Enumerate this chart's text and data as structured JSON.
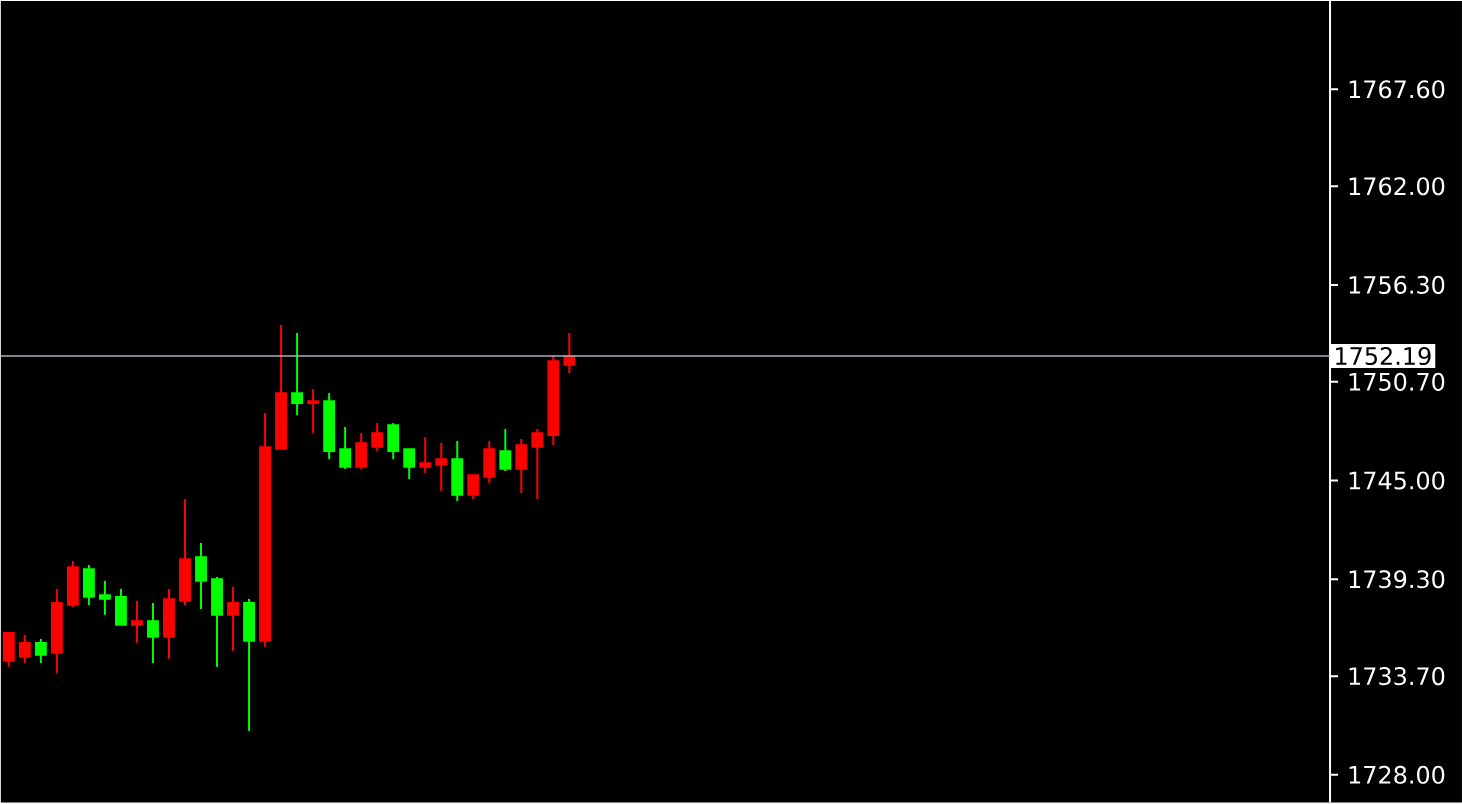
{
  "chart_data": {
    "type": "candlestick",
    "categories": [
      null,
      null,
      null,
      null,
      null,
      null,
      null,
      null,
      null,
      null,
      null,
      null,
      null,
      null,
      null,
      null,
      null,
      null,
      null,
      null,
      null,
      null,
      null,
      null,
      null,
      null,
      null,
      null,
      null,
      null,
      null,
      null,
      null,
      null,
      null,
      null,
      null,
      null,
      null,
      null,
      null,
      null,
      null,
      null,
      null,
      null,
      null,
      null,
      null,
      null,
      null,
      null,
      null,
      null,
      null,
      null,
      null,
      null,
      null,
      null,
      null,
      null,
      null,
      null,
      null,
      null,
      null,
      null,
      null,
      null,
      null,
      null,
      null,
      null,
      null,
      null,
      null,
      null,
      null,
      null,
      null,
      null,
      null
    ],
    "ylim": [
      1726.4,
      1772.7
    ],
    "yticks": [
      {
        "value": 1728.0,
        "label": "1728.00"
      },
      {
        "value": 1733.7,
        "label": "1733.70"
      },
      {
        "value": 1739.3,
        "label": "1739.30"
      },
      {
        "value": 1745.0,
        "label": "1745.00"
      },
      {
        "value": 1750.7,
        "label": "1750.70"
      },
      {
        "value": 1756.3,
        "label": "1756.30"
      },
      {
        "value": 1762.0,
        "label": "1762.00"
      },
      {
        "value": 1767.6,
        "label": "1767.60"
      }
    ],
    "tick_labels": "y",
    "ohlc": [
      [
        1734.58,
        1736.2,
        1734.24,
        1736.2
      ],
      [
        1734.81,
        1736.08,
        1734.46,
        1735.62
      ],
      [
        1735.62,
        1735.85,
        1734.46,
        1734.93
      ],
      [
        1735.04,
        1738.74,
        1733.89,
        1737.93
      ],
      [
        1737.81,
        1740.35,
        1737.7,
        1740.0
      ],
      [
        1739.89,
        1740.12,
        1737.81,
        1738.28
      ],
      [
        1738.39,
        1739.2,
        1737.24,
        1738.16
      ],
      [
        1738.28,
        1738.74,
        1736.66,
        1736.66
      ],
      [
        1736.66,
        1738.04,
        1735.62,
        1736.89
      ],
      [
        1736.89,
        1737.93,
        1734.46,
        1735.97
      ],
      [
        1735.97,
        1738.74,
        1734.7,
        1738.16
      ],
      [
        1738.04,
        1743.93,
        1737.81,
        1740.47
      ],
      [
        1740.58,
        1741.39,
        1737.58,
        1739.2
      ],
      [
        1739.31,
        1739.43,
        1734.24,
        1737.24
      ],
      [
        1737.24,
        1738.86,
        1735.16,
        1737.93
      ],
      [
        1737.93,
        1738.16,
        1730.54,
        1735.74
      ],
      [
        1735.74,
        1748.9,
        1735.39,
        1746.94
      ],
      [
        1746.82,
        1753.98,
        1746.82,
        1750.05
      ],
      [
        1750.05,
        1753.52,
        1748.78,
        1749.47
      ],
      [
        1749.47,
        1750.28,
        1747.74,
        1749.59
      ],
      [
        1749.59,
        1750.05,
        1746.24,
        1746.7
      ],
      [
        1746.82,
        1748.09,
        1745.67,
        1745.78
      ],
      [
        1745.78,
        1747.74,
        1745.67,
        1747.17
      ],
      [
        1746.94,
        1748.32,
        1746.7,
        1747.74
      ],
      [
        1748.2,
        1748.32,
        1746.24,
        1746.7
      ],
      [
        1746.82,
        1746.82,
        1745.09,
        1745.78
      ],
      [
        1745.78,
        1747.51,
        1745.43,
        1746.01
      ],
      [
        1745.9,
        1747.17,
        1744.39,
        1746.24
      ],
      [
        1746.24,
        1747.28,
        1743.81,
        1744.16
      ],
      [
        1744.16,
        1745.32,
        1743.93,
        1745.32
      ],
      [
        1745.2,
        1747.28,
        1744.86,
        1746.82
      ],
      [
        1746.7,
        1747.97,
        1745.55,
        1745.67
      ],
      [
        1745.67,
        1747.4,
        1744.28,
        1747.05
      ],
      [
        1746.94,
        1747.97,
        1743.93,
        1747.74
      ],
      [
        1747.62,
        1752.25,
        1747.05,
        1751.9
      ],
      [
        1751.67,
        1753.52,
        1751.21,
        1752.19
      ],
      null,
      null,
      null,
      null,
      null,
      null,
      null,
      null,
      null,
      null,
      null,
      null,
      null,
      null,
      null,
      null,
      null,
      null,
      null,
      null,
      null,
      null,
      null,
      null,
      null,
      null,
      null,
      null,
      null,
      null,
      null,
      null,
      null,
      null,
      null,
      null,
      null,
      null,
      null,
      null,
      null,
      null,
      null,
      null,
      null,
      null,
      null
    ],
    "colors": [
      "#ff0000",
      "#ff0000",
      "#00ff00",
      "#ff0000",
      "#ff0000",
      "#00ff00",
      "#00ff00",
      "#00ff00",
      "#ff0000",
      "#00ff00",
      "#ff0000",
      "#ff0000",
      "#00ff00",
      "#00ff00",
      "#ff0000",
      "#00ff00",
      "#ff0000",
      "#ff0000",
      "#00ff00",
      "#ff0000",
      "#00ff00",
      "#00ff00",
      "#ff0000",
      "#ff0000",
      "#00ff00",
      "#00ff00",
      "#ff0000",
      "#ff0000",
      "#00ff00",
      "#ff0000",
      "#ff0000",
      "#00ff00",
      "#ff0000",
      "#ff0000",
      "#ff0000",
      "#ff0000",
      null,
      null,
      null,
      null,
      null,
      null,
      null,
      null,
      null,
      null,
      null,
      null,
      null,
      null,
      null,
      null,
      null,
      null,
      null,
      null,
      null,
      null,
      null,
      null,
      null,
      null,
      null,
      null,
      null,
      null,
      null,
      null,
      null,
      null,
      null,
      null,
      null,
      null,
      null,
      null,
      null,
      null,
      null,
      null,
      null,
      null,
      null
    ],
    "ref_lines": [
      {
        "axis": "y",
        "value": 1752.19,
        "label": "1752.19",
        "color": "#a8b0b8"
      }
    ]
  }
}
